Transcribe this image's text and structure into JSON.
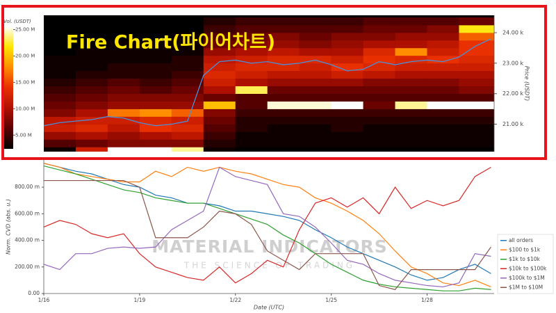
{
  "chart_data": [
    {
      "type": "heatmap",
      "annotation": "Fire Chart(파이어차트)",
      "colorbar_label": "Vol. (USDT)",
      "clim": [
        2400000,
        25600000
      ],
      "cticks": [
        {
          "value": 5000000,
          "label": "5.00 M"
        },
        {
          "value": 10000000,
          "label": "10.00 M"
        },
        {
          "value": 15000000,
          "label": "15.00 M"
        },
        {
          "value": 20000000,
          "label": "20.00 M"
        },
        {
          "value": 25000000,
          "label": "25.00 M"
        }
      ],
      "colorscale": [
        "#000000",
        "#5a0000",
        "#b01000",
        "#e83000",
        "#ff8c00",
        "#ffe600",
        "#ffffff"
      ],
      "y2label": "Price (USDT)",
      "y2lim": [
        20100,
        24570
      ],
      "y2ticks": [
        {
          "value": 21000,
          "label": "21.00 k"
        },
        {
          "value": 22000,
          "label": "22.00 k"
        },
        {
          "value": 23000,
          "label": "23.00 k"
        },
        {
          "value": 24000,
          "label": "24.00 k"
        }
      ],
      "xlim": [
        0,
        14.1
      ],
      "xbins": [
        0,
        1,
        2,
        3,
        4,
        5,
        6,
        7,
        8,
        9,
        10,
        11,
        12,
        13,
        14.1
      ],
      "ybins": [
        20000,
        20250,
        20500,
        20750,
        21000,
        21250,
        21500,
        21750,
        22000,
        22250,
        22500,
        22750,
        23000,
        23250,
        23500,
        23750,
        24000,
        24250,
        24500
      ],
      "z": [
        [
          3000000.0,
          12000000.0,
          26000000.0,
          26000000.0,
          24000000.0,
          3000000.0,
          2000000.0,
          2000000.0,
          2000000.0,
          2000000.0,
          2000000.0,
          2000000.0,
          2000000.0,
          2000000.0
        ],
        [
          6000000.0,
          7000000.0,
          8000000.0,
          8000000.0,
          8000000.0,
          4000000.0,
          3000000.0,
          3000000.0,
          3000000.0,
          3000000.0,
          3000000.0,
          3000000.0,
          3000000.0,
          3000000.0
        ],
        [
          9000000.0,
          10000000.0,
          9000000.0,
          10000000.0,
          11000000.0,
          5000000.0,
          3000000.0,
          3000000.0,
          3000000.0,
          3000000.0,
          3000000.0,
          3000000.0,
          3000000.0,
          3000000.0
        ],
        [
          12000000.0,
          13000000.0,
          11000000.0,
          14000000.0,
          13000000.0,
          6000000.0,
          4000000.0,
          3000000.0,
          3000000.0,
          4000000.0,
          3000000.0,
          3000000.0,
          3000000.0,
          3000000.0
        ],
        [
          11000000.0,
          12000000.0,
          12000000.0,
          13000000.0,
          12000000.0,
          7000000.0,
          4000000.0,
          4000000.0,
          4000000.0,
          4000000.0,
          4000000.0,
          4000000.0,
          4000000.0,
          4000000.0
        ],
        [
          8000000.0,
          10000000.0,
          17000000.0,
          18000000.0,
          16000000.0,
          8000000.0,
          5000000.0,
          5000000.0,
          5000000.0,
          5000000.0,
          5000000.0,
          5000000.0,
          5000000.0,
          5000000.0
        ],
        [
          7000000.0,
          8000000.0,
          9000000.0,
          9000000.0,
          9000000.0,
          20000000.0,
          6000000.0,
          25000000.0,
          25000000.0,
          26000000.0,
          7000000.0,
          24000000.0,
          26000000.0,
          26000000.0
        ],
        [
          6000000.0,
          7000000.0,
          8000000.0,
          8000000.0,
          8000000.0,
          7000000.0,
          6000000.0,
          6000000.0,
          6000000.0,
          6000000.0,
          6000000.0,
          6000000.0,
          6000000.0,
          6000000.0
        ],
        [
          5000000.0,
          6000000.0,
          7000000.0,
          6000000.0,
          7000000.0,
          10000000.0,
          23000000.0,
          7000000.0,
          7000000.0,
          7000000.0,
          7000000.0,
          7000000.0,
          7000000.0,
          8000000.0
        ],
        [
          4000000.0,
          5000000.0,
          6000000.0,
          5000000.0,
          6000000.0,
          12000000.0,
          10000000.0,
          9000000.0,
          9000000.0,
          9000000.0,
          8000000.0,
          8000000.0,
          8000000.0,
          9000000.0
        ],
        [
          3000000.0,
          4000000.0,
          4000000.0,
          4000000.0,
          5000000.0,
          13000000.0,
          12000000.0,
          11000000.0,
          11000000.0,
          12000000.0,
          11000000.0,
          10000000.0,
          10000000.0,
          10000000.0
        ],
        [
          3000000.0,
          3000000.0,
          4000000.0,
          4000000.0,
          4000000.0,
          12000000.0,
          13000000.0,
          13000000.0,
          12000000.0,
          14000000.0,
          13000000.0,
          12000000.0,
          12000000.0,
          12000000.0
        ],
        [
          3000000.0,
          3000000.0,
          3000000.0,
          3000000.0,
          4000000.0,
          11000000.0,
          12000000.0,
          13000000.0,
          13000000.0,
          12000000.0,
          14000000.0,
          13000000.0,
          14000000.0,
          13000000.0
        ],
        [
          2000000.0,
          3000000.0,
          3000000.0,
          3000000.0,
          3000000.0,
          9000000.0,
          10000000.0,
          11000000.0,
          10000000.0,
          10000000.0,
          13000000.0,
          18000000.0,
          12000000.0,
          14000000.0
        ],
        [
          2000000.0,
          2000000.0,
          3000000.0,
          3000000.0,
          3000000.0,
          7000000.0,
          8000000.0,
          9000000.0,
          8000000.0,
          9000000.0,
          10000000.0,
          10000000.0,
          11000000.0,
          14000000.0
        ],
        [
          2000000.0,
          2000000.0,
          2000000.0,
          2000000.0,
          3000000.0,
          6000000.0,
          7000000.0,
          8000000.0,
          7000000.0,
          8000000.0,
          8000000.0,
          9000000.0,
          9000000.0,
          16000000.0
        ],
        [
          2000000.0,
          2000000.0,
          2000000.0,
          2000000.0,
          2000000.0,
          5000000.0,
          6000000.0,
          6000000.0,
          6000000.0,
          6000000.0,
          7000000.0,
          7000000.0,
          8000000.0,
          22000000.0
        ],
        [
          2000000.0,
          2000000.0,
          2000000.0,
          2000000.0,
          2000000.0,
          4000000.0,
          5000000.0,
          5000000.0,
          5000000.0,
          5000000.0,
          6000000.0,
          6000000.0,
          6000000.0,
          7000000.0
        ]
      ],
      "x": [
        0,
        0.5,
        1,
        1.5,
        2,
        2.5,
        3,
        3.5,
        4,
        4.5,
        5,
        5.5,
        6,
        6.5,
        7,
        7.5,
        8,
        8.5,
        9,
        9.5,
        10,
        10.5,
        11,
        11.5,
        12,
        12.5,
        13,
        13.5,
        14
      ],
      "series": [
        {
          "color": "#4a90d9",
          "axis": "y2",
          "values": [
            20950,
            21050,
            21100,
            21150,
            21250,
            21200,
            21050,
            20950,
            21000,
            21100,
            22600,
            23050,
            23100,
            23000,
            23050,
            22950,
            23000,
            23100,
            22950,
            22750,
            22800,
            23050,
            22950,
            23050,
            23100,
            23050,
            23200,
            23550,
            23800
          ]
        }
      ]
    },
    {
      "type": "line",
      "xlabel": "Date (UTC)",
      "ylabel": "Norm. CVD (abs. u.)",
      "watermark": "MATERIAL INDICATORS",
      "watermark_sub": "THE SCIENCE OF TRADING",
      "xlim": [
        0,
        14.1
      ],
      "xticks": [
        {
          "value": 0,
          "label": "1/16"
        },
        {
          "value": 3,
          "label": "1/19"
        },
        {
          "value": 6,
          "label": "1/22"
        },
        {
          "value": 9,
          "label": "1/25"
        },
        {
          "value": 12,
          "label": "1/28"
        }
      ],
      "ylim": [
        0,
        1.01
      ],
      "yticks": [
        {
          "value": 0,
          "label": "0.00"
        },
        {
          "value": 0.2,
          "label": "200.00 m"
        },
        {
          "value": 0.4,
          "label": "400.00 m"
        },
        {
          "value": 0.6,
          "label": "600.00 m"
        },
        {
          "value": 0.8,
          "label": "800.00 m"
        }
      ],
      "legend": "lower right",
      "x": [
        0,
        0.5,
        1,
        1.5,
        2,
        2.5,
        3,
        3.5,
        4,
        4.5,
        5,
        5.5,
        6,
        6.5,
        7,
        7.5,
        8,
        8.5,
        9,
        9.5,
        10,
        10.5,
        11,
        11.5,
        12,
        12.5,
        13,
        13.5,
        14
      ],
      "series": [
        {
          "name": "all orders",
          "color": "#1f77b4",
          "values": [
            0.98,
            0.95,
            0.92,
            0.9,
            0.86,
            0.82,
            0.8,
            0.74,
            0.72,
            0.68,
            0.68,
            0.66,
            0.62,
            0.62,
            0.6,
            0.58,
            0.55,
            0.48,
            0.42,
            0.35,
            0.3,
            0.25,
            0.2,
            0.14,
            0.1,
            0.12,
            0.18,
            0.22,
            0.15
          ]
        },
        {
          "name": "$100 to $1k",
          "color": "#ff7f0e",
          "values": [
            0.98,
            0.95,
            0.9,
            0.88,
            0.86,
            0.84,
            0.84,
            0.92,
            0.88,
            0.95,
            0.92,
            0.95,
            0.92,
            0.9,
            0.86,
            0.82,
            0.8,
            0.72,
            0.68,
            0.62,
            0.55,
            0.45,
            0.32,
            0.2,
            0.15,
            0.08,
            0.06,
            0.1,
            0.05
          ]
        },
        {
          "name": "$1k to $10k",
          "color": "#2ca02c",
          "values": [
            0.96,
            0.93,
            0.9,
            0.86,
            0.82,
            0.78,
            0.76,
            0.72,
            0.7,
            0.68,
            0.68,
            0.64,
            0.6,
            0.56,
            0.52,
            0.44,
            0.38,
            0.3,
            0.22,
            0.16,
            0.1,
            0.07,
            0.05,
            0.04,
            0.03,
            0.02,
            0.02,
            0.04,
            0.03
          ]
        },
        {
          "name": "$10k to $100k",
          "color": "#d62728",
          "values": [
            0.5,
            0.55,
            0.52,
            0.45,
            0.42,
            0.45,
            0.3,
            0.2,
            0.16,
            0.12,
            0.1,
            0.2,
            0.08,
            0.15,
            0.25,
            0.2,
            0.48,
            0.68,
            0.72,
            0.65,
            0.72,
            0.6,
            0.8,
            0.64,
            0.7,
            0.66,
            0.7,
            0.88,
            0.95
          ]
        },
        {
          "name": "$100k to $1M",
          "color": "#9467bd",
          "values": [
            0.22,
            0.18,
            0.3,
            0.3,
            0.34,
            0.35,
            0.34,
            0.35,
            0.48,
            0.55,
            0.62,
            0.95,
            0.88,
            0.85,
            0.82,
            0.6,
            0.58,
            0.5,
            0.38,
            0.25,
            0.22,
            0.15,
            0.1,
            0.08,
            0.06,
            0.05,
            0.08,
            0.3,
            0.28
          ]
        },
        {
          "name": "$1M to $10M",
          "color": "#8c564b",
          "values": [
            0.85,
            0.85,
            0.85,
            0.85,
            0.85,
            0.85,
            0.8,
            0.42,
            0.42,
            0.42,
            0.5,
            0.62,
            0.6,
            0.52,
            0.32,
            0.25,
            0.18,
            0.3,
            0.3,
            0.3,
            0.3,
            0.06,
            0.03,
            0.18,
            0.18,
            0.18,
            0.18,
            0.18,
            0.35
          ]
        }
      ]
    }
  ]
}
